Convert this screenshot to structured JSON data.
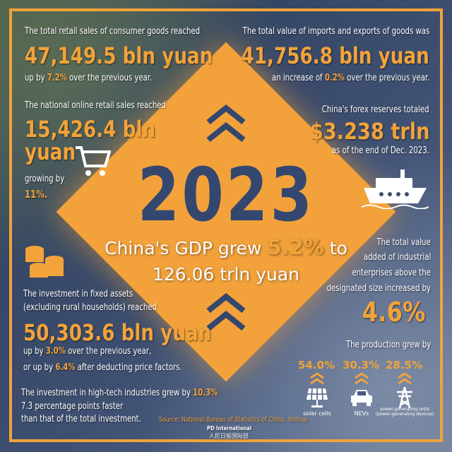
{
  "year": "2023",
  "retail": {
    "line1": "The total retail sales of consumer goods reached",
    "value": "47,149.5 bln yuan",
    "pre": "up by ",
    "pct": "7.2%",
    "post": " over the previous year."
  },
  "trade": {
    "line1": "The total value of imports and exports of goods was",
    "value": "41,756.8 bln yuan",
    "pre": "an increase of ",
    "pct": "0.2%",
    "post": " over the previous year."
  },
  "online": {
    "line1": "The national online retail sales reached",
    "value1": "15,426.4 bln",
    "value2": "yuan",
    "line3": "growing by",
    "pct": "11%."
  },
  "forex": {
    "line1": "China's forex reserves totaled",
    "value": "$3.238 trln",
    "line3": "as of the end of Dec. 2023."
  },
  "gdp": {
    "pre": "China's GDP grew ",
    "pct": "5.2%",
    "post": " to",
    "line2": "126.06 trln yuan"
  },
  "investment": {
    "line1": "The investment in fixed assets",
    "line2": "(excluding rural households) reached",
    "value": "50,303.6 bln yuan",
    "l3pre": "up by ",
    "l3pct": "3.0%",
    "l3post": " over the previous year,",
    "l4pre": "or up by ",
    "l4pct": "6.4%",
    "l4post": " after deducting price factors."
  },
  "hightech": {
    "line1": "The investment in high-tech industries grew by ",
    "pct": "10.3%",
    "line2": "7.3 percentage points faster",
    "line3": "than that of the total investment."
  },
  "industrial": {
    "line1": "The total value",
    "line2": "added of industrial",
    "line3": "enterprises above the",
    "line4": "designated size increased by",
    "value": "4.6%",
    "line5": "The production grew by"
  },
  "production": [
    {
      "pct": "54.0%",
      "label": "solar cells",
      "icon": "solar-panel-icon"
    },
    {
      "pct": "30.3%",
      "label": "NEVs",
      "icon": "car-icon"
    },
    {
      "pct": "28.5%",
      "label": "power-generating units (power-generating devices)",
      "icon": "power-tower-icon"
    }
  ],
  "source": "Source: National Bureau of Statistics of China, Xinhua",
  "credit": {
    "line1": "PD International",
    "line2": "人民日报国际部"
  },
  "colors": {
    "accent": "#f2a33a",
    "navy": "#34476f"
  }
}
